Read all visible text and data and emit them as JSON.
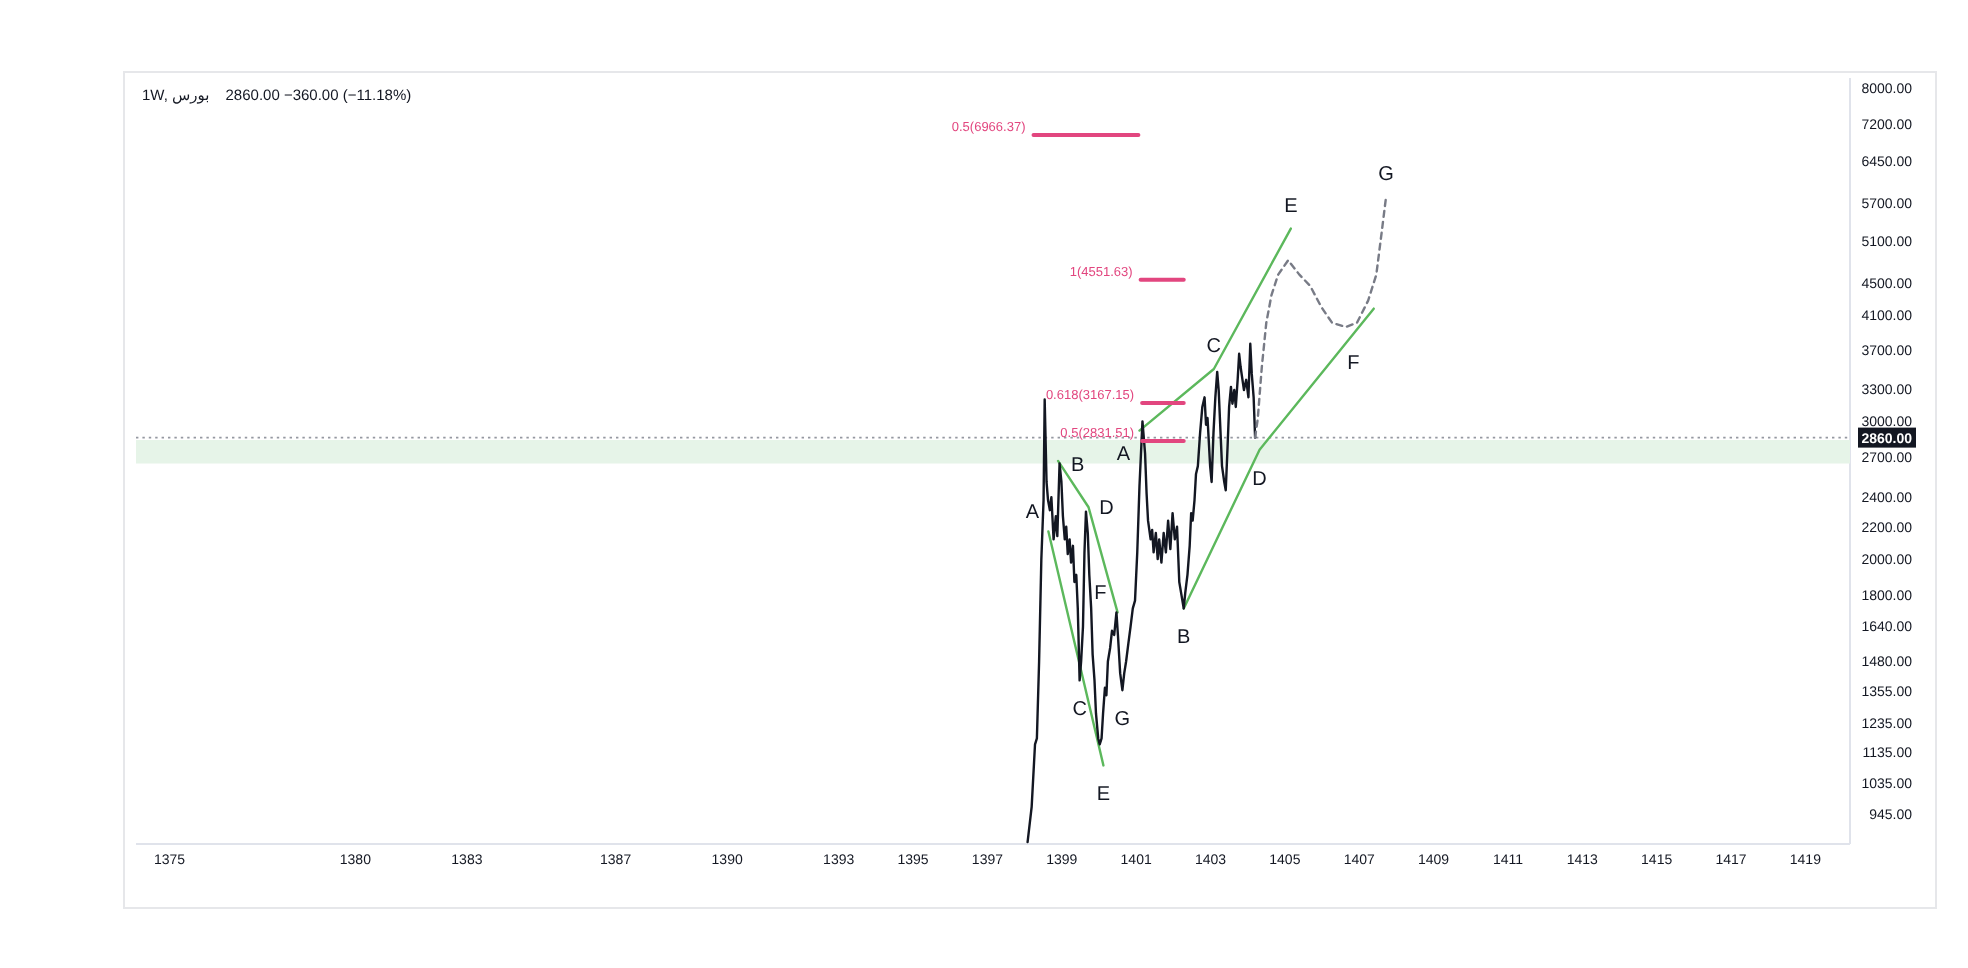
{
  "chart_data": {
    "type": "line",
    "title": "1W, بورس",
    "subtitle": "2860.00  −360.00 (−11.18%)",
    "log": "y",
    "xlim": [
      1374.1,
      1420.2
    ],
    "xticks": [
      1375,
      1380,
      1383,
      1387,
      1390,
      1393,
      1395,
      1397,
      1399,
      1401,
      1403,
      1405,
      1407,
      1409,
      1411,
      1413,
      1415,
      1417,
      1419
    ],
    "ylim": [
      865,
      8240
    ],
    "yticks": [
      {
        "value": 945,
        "label": "945.00"
      },
      {
        "value": 1035,
        "label": "1035.00"
      },
      {
        "value": 1135,
        "label": "1135.00"
      },
      {
        "value": 1235,
        "label": "1235.00"
      },
      {
        "value": 1355,
        "label": "1355.00"
      },
      {
        "value": 1480,
        "label": "1480.00"
      },
      {
        "value": 1640,
        "label": "1640.00"
      },
      {
        "value": 1800,
        "label": "1800.00"
      },
      {
        "value": 2000,
        "label": "2000.00"
      },
      {
        "value": 2200,
        "label": "2200.00"
      },
      {
        "value": 2400,
        "label": "2400.00"
      },
      {
        "value": 2700,
        "label": "2700.00"
      },
      {
        "value": 3000,
        "label": "3000.00"
      },
      {
        "value": 3300,
        "label": "3300.00"
      },
      {
        "value": 3700,
        "label": "3700.00"
      },
      {
        "value": 4100,
        "label": "4100.00"
      },
      {
        "value": 4500,
        "label": "4500.00"
      },
      {
        "value": 5100,
        "label": "5100.00"
      },
      {
        "value": 5700,
        "label": "5700.00"
      },
      {
        "value": 6450,
        "label": "6450.00"
      },
      {
        "value": 7200,
        "label": "7200.00"
      },
      {
        "value": 8000,
        "label": "8000.00"
      }
    ],
    "legend": false,
    "bands": [
      {
        "axis": "y",
        "from": 2650,
        "to": 2840,
        "color": "#e6f4e8"
      }
    ],
    "ref_lines": [
      {
        "axis": "y",
        "value": 2860,
        "label": "2860.00",
        "color": "#9598a1",
        "line_style": "dotted"
      }
    ],
    "series": [
      {
        "color": "#5cb85c",
        "x": [
          1398.64,
          1400.12
        ],
        "values": [
          2170,
          1090
        ]
      },
      {
        "color": "#5cb85c",
        "x": [
          1398.9,
          1399.72,
          1400.5
        ],
        "values": [
          2670,
          2330,
          1710
        ]
      },
      {
        "color": "#5cb85c",
        "x": [
          1401.09,
          1403.09,
          1405.16
        ],
        "values": [
          2920,
          3500,
          5290
        ]
      },
      {
        "color": "#5cb85c",
        "x": [
          1402.28,
          1404.32,
          1406.84,
          1407.39
        ],
        "values": [
          1730,
          2760,
          3880,
          4180
        ]
      },
      {
        "color": "#131722",
        "x": [
          1398.08,
          1398.19,
          1398.28,
          1398.33,
          1398.39,
          1398.45,
          1398.51,
          1398.54,
          1398.59,
          1398.63,
          1398.68,
          1398.72,
          1398.78,
          1398.84,
          1398.88,
          1398.94,
          1398.99,
          1399.03,
          1399.08,
          1399.12,
          1399.16,
          1399.21,
          1399.25,
          1399.3,
          1399.34,
          1399.39,
          1399.43,
          1399.48,
          1399.52,
          1399.57,
          1399.61,
          1399.65,
          1399.7,
          1399.74,
          1399.79,
          1399.83,
          1399.88,
          1399.92,
          1399.98,
          1400.02,
          1400.07,
          1400.11,
          1400.16,
          1400.2,
          1400.24,
          1400.3,
          1400.35,
          1400.41,
          1400.47,
          1400.51,
          1400.57,
          1400.63,
          1400.68,
          1400.73,
          1400.79,
          1400.85,
          1400.91,
          1400.97,
          1401.03,
          1401.09,
          1401.17,
          1401.24,
          1401.28,
          1401.32,
          1401.39,
          1401.43,
          1401.47,
          1401.53,
          1401.58,
          1401.62,
          1401.68,
          1401.74,
          1401.8,
          1401.86,
          1401.92,
          1401.98,
          1402.04,
          1402.1,
          1402.16,
          1402.21,
          1402.28,
          1402.32,
          1402.38,
          1402.44,
          1402.48,
          1402.52,
          1402.57,
          1402.61,
          1402.66,
          1402.72,
          1402.78,
          1402.84,
          1402.88,
          1402.92,
          1402.99,
          1403.03,
          1403.08,
          1403.13,
          1403.18,
          1403.22,
          1403.27,
          1403.31,
          1403.37,
          1403.41,
          1403.46,
          1403.5,
          1403.55,
          1403.59,
          1403.64,
          1403.68,
          1403.73,
          1403.77,
          1403.81,
          1403.86,
          1403.9,
          1403.96,
          1404.02,
          1404.07,
          1404.11,
          1404.16,
          1404.2
        ],
        "values": [
          870,
          965,
          1160,
          1180,
          1480,
          2000,
          2380,
          3200,
          2510,
          2380,
          2310,
          2400,
          2120,
          2270,
          2140,
          2650,
          2510,
          2270,
          2120,
          2200,
          2030,
          2120,
          1980,
          2080,
          1870,
          1910,
          1730,
          1400,
          1480,
          1640,
          2040,
          2300,
          2160,
          1910,
          1730,
          1510,
          1400,
          1270,
          1180,
          1160,
          1180,
          1270,
          1370,
          1340,
          1480,
          1540,
          1620,
          1600,
          1710,
          1600,
          1430,
          1360,
          1430,
          1480,
          1560,
          1640,
          1730,
          1770,
          2040,
          2480,
          3000,
          2730,
          2430,
          2240,
          2120,
          2180,
          2040,
          2160,
          2000,
          2120,
          1980,
          2160,
          2040,
          2240,
          2060,
          2290,
          2120,
          2200,
          1870,
          1810,
          1730,
          1810,
          1910,
          2080,
          2290,
          2240,
          2380,
          2570,
          2630,
          2900,
          3130,
          3220,
          2970,
          3030,
          2630,
          2510,
          2900,
          3220,
          3470,
          3290,
          2900,
          2630,
          2510,
          2450,
          2790,
          3130,
          3320,
          3160,
          3290,
          3130,
          3390,
          3660,
          3520,
          3390,
          3290,
          3390,
          3220,
          3770,
          3450,
          3220,
          2860
        ]
      },
      {
        "color": "#787b86",
        "line_style": "dashed",
        "x": [
          1404.2,
          1404.27,
          1404.38,
          1404.5,
          1404.64,
          1404.82,
          1405.09,
          1405.39,
          1405.68,
          1405.98,
          1406.27,
          1406.64,
          1406.94,
          1407.24,
          1407.46,
          1407.61,
          1407.72
        ],
        "values": [
          2860,
          3020,
          3520,
          4010,
          4350,
          4620,
          4820,
          4620,
          4470,
          4200,
          4010,
          3960,
          4010,
          4280,
          4620,
          5260,
          5800
        ]
      },
      {
        "color": "#e2467f",
        "name": "0.5(6966.37)",
        "x": [
          1398.24,
          1401.06
        ],
        "values": [
          6966.37,
          6966.37
        ]
      },
      {
        "color": "#e2467f",
        "name": "1(4551.63)",
        "x": [
          1401.12,
          1402.28
        ],
        "values": [
          4551.63,
          4551.63
        ]
      },
      {
        "color": "#e2467f",
        "name": "0.618(3167.15)",
        "x": [
          1401.16,
          1402.28
        ],
        "values": [
          3167.15,
          3167.15
        ]
      },
      {
        "color": "#e2467f",
        "name": "0.5(2831.51)",
        "x": [
          1401.16,
          1402.28
        ],
        "values": [
          2831.51,
          2831.51
        ]
      }
    ],
    "annotations": [
      {
        "text": "A",
        "x": 1398.64,
        "y": 2170
      },
      {
        "text": "B",
        "x": 1398.94,
        "y": 2650
      },
      {
        "text": "C",
        "x": 1399.48,
        "y": 1400
      },
      {
        "text": "D",
        "x": 1399.72,
        "y": 2330
      },
      {
        "text": "E",
        "x": 1400.12,
        "y": 1090
      },
      {
        "text": "F",
        "x": 1400.47,
        "y": 1710
      },
      {
        "text": "G",
        "x": 1400.63,
        "y": 1360
      },
      {
        "text": "A",
        "x": 1401.09,
        "y": 2920
      },
      {
        "text": "B",
        "x": 1402.28,
        "y": 1730
      },
      {
        "text": "C",
        "x": 1403.09,
        "y": 3500
      },
      {
        "text": "D",
        "x": 1404.32,
        "y": 2760
      },
      {
        "text": "E",
        "x": 1405.16,
        "y": 5290
      },
      {
        "text": "F",
        "x": 1406.84,
        "y": 3880
      },
      {
        "text": "G",
        "x": 1407.72,
        "y": 5800
      }
    ]
  }
}
